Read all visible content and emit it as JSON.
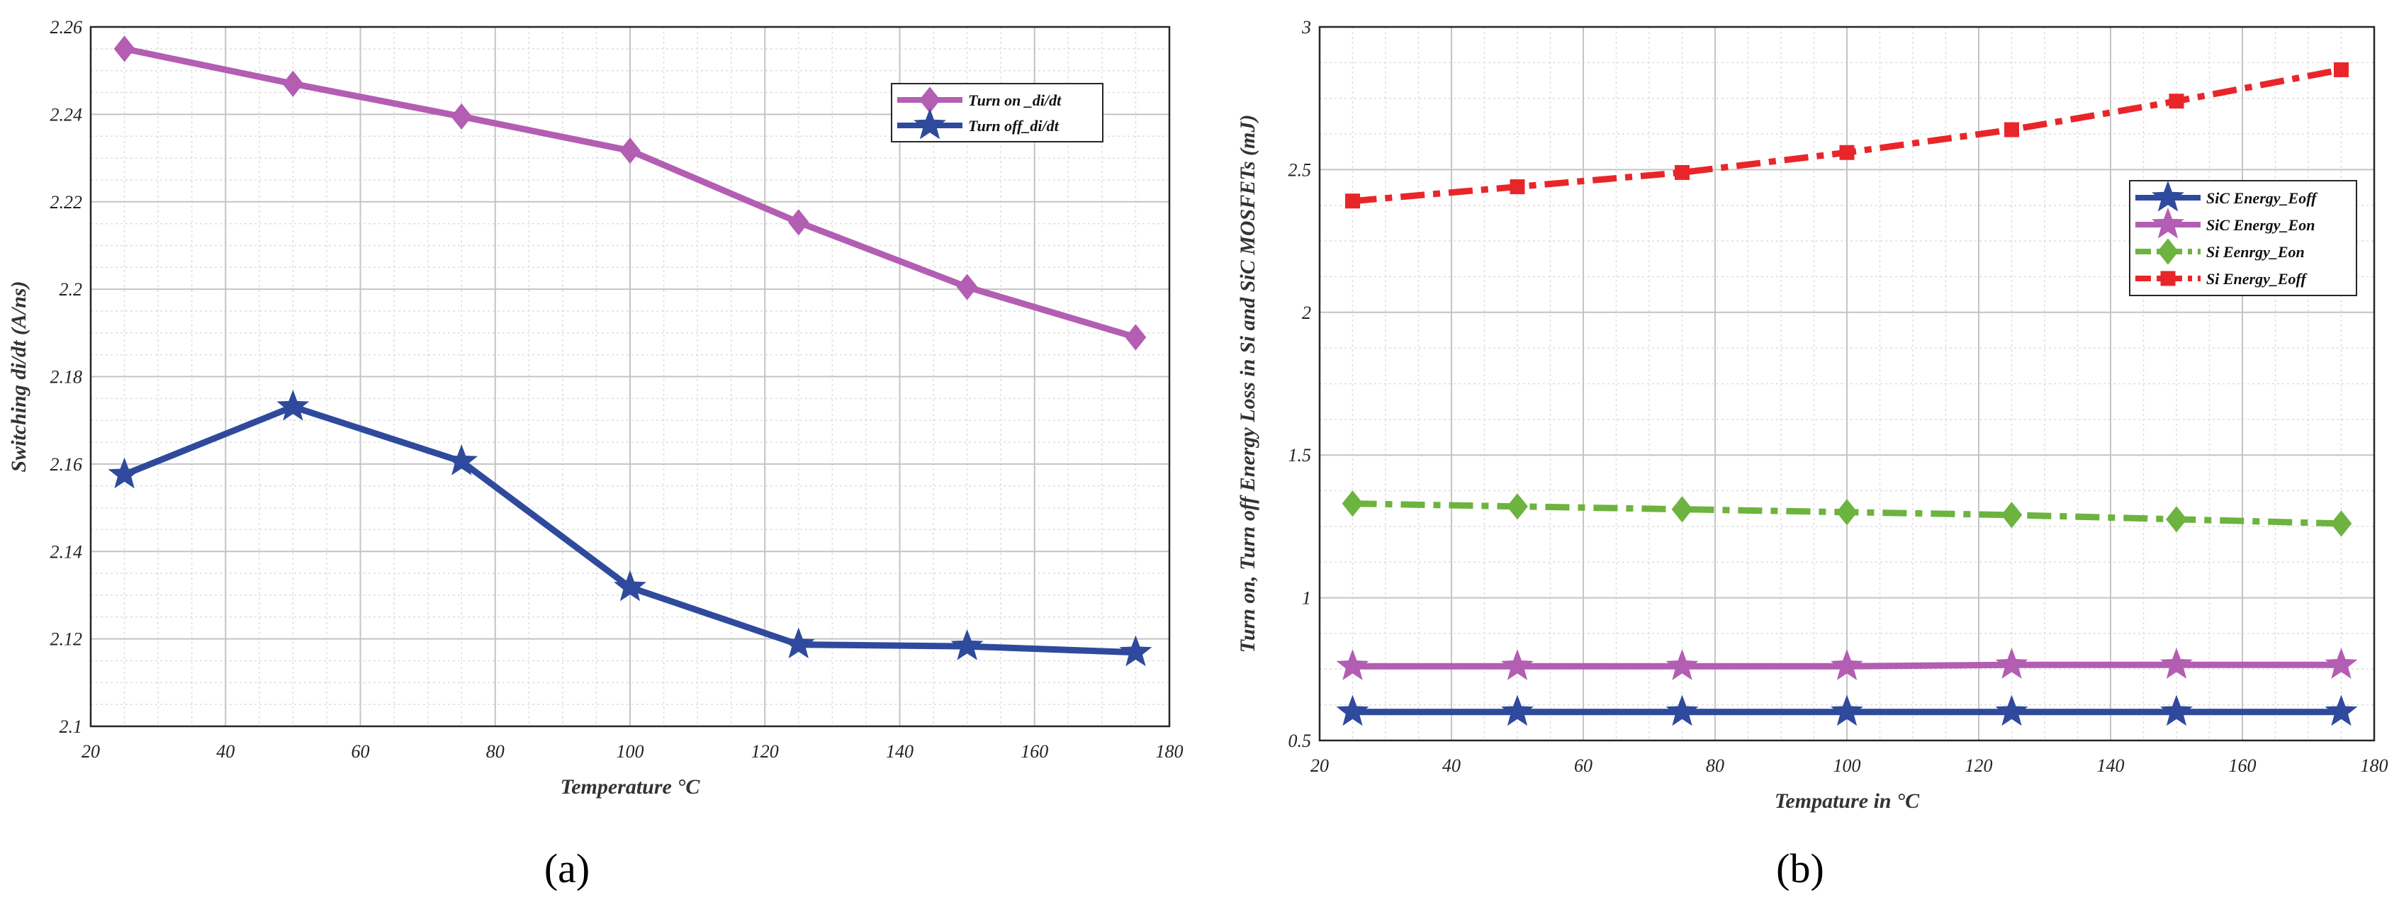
{
  "chart_data": [
    {
      "type": "line",
      "panel_label": "(a)",
      "xlabel": "Temperature °C",
      "ylabel": "Switching di/dt (A/ns)",
      "xlim": [
        20,
        180
      ],
      "ylim": [
        2.1,
        2.26
      ],
      "xticks": [
        20,
        40,
        60,
        80,
        100,
        120,
        140,
        160,
        180
      ],
      "yticks": [
        2.1,
        2.12,
        2.14,
        2.16,
        2.18,
        2.2,
        2.22,
        2.24,
        2.26
      ],
      "ytick_labels": [
        "2.1",
        "2.12",
        "2.14",
        "2.16",
        "2.18",
        "2.2",
        "2.22",
        "2.24",
        "2.26"
      ],
      "grid": true,
      "legend_position": "top-right",
      "x": [
        25,
        50,
        75,
        100,
        125,
        150,
        175
      ],
      "series": [
        {
          "name": "Turn on _di/dt",
          "color": "#b35db3",
          "marker": "diamond",
          "dash": "solid",
          "values": [
            2.255,
            2.247,
            2.2395,
            2.2317,
            2.2153,
            2.2005,
            2.189
          ]
        },
        {
          "name": "Turn off_di/dt",
          "color": "#2f4a9c",
          "marker": "star",
          "dash": "solid",
          "values": [
            2.1576,
            2.1731,
            2.1606,
            2.1318,
            2.1187,
            2.1183,
            2.1169
          ]
        }
      ]
    },
    {
      "type": "line",
      "panel_label": "(b)",
      "xlabel": "Tempature in °C",
      "ylabel": "Turn on, Turn off Energy Loss in Si and SiC MOSFETs (mJ)",
      "xlim": [
        20,
        180
      ],
      "ylim": [
        0.5,
        3
      ],
      "xticks": [
        20,
        40,
        60,
        80,
        100,
        120,
        140,
        160,
        180
      ],
      "yticks": [
        0.5,
        1,
        1.5,
        2,
        2.5,
        3
      ],
      "ytick_labels": [
        "0.5",
        "1",
        "1.5",
        "2",
        "2.5",
        "3"
      ],
      "grid": true,
      "legend_position": "top-right",
      "x": [
        25,
        50,
        75,
        100,
        125,
        150,
        175
      ],
      "series": [
        {
          "name": "SiC Energy_Eoff",
          "color": "#2f4a9c",
          "marker": "star",
          "dash": "solid",
          "values": [
            0.6,
            0.6,
            0.6,
            0.6,
            0.6,
            0.6,
            0.6
          ]
        },
        {
          "name": "SiC Energy_Eon",
          "color": "#b35db3",
          "marker": "star",
          "dash": "solid",
          "values": [
            0.76,
            0.76,
            0.76,
            0.76,
            0.765,
            0.765,
            0.765
          ]
        },
        {
          "name": "Si Eenrgy_Eon",
          "color": "#6db33f",
          "marker": "diamond",
          "dash": "dashdot",
          "values": [
            1.33,
            1.32,
            1.31,
            1.3,
            1.29,
            1.275,
            1.26
          ]
        },
        {
          "name": "Si Energy_Eoff",
          "color": "#e8262a",
          "marker": "square",
          "dash": "dashdot",
          "values": [
            2.39,
            2.44,
            2.49,
            2.56,
            2.64,
            2.74,
            2.85
          ]
        }
      ]
    }
  ]
}
